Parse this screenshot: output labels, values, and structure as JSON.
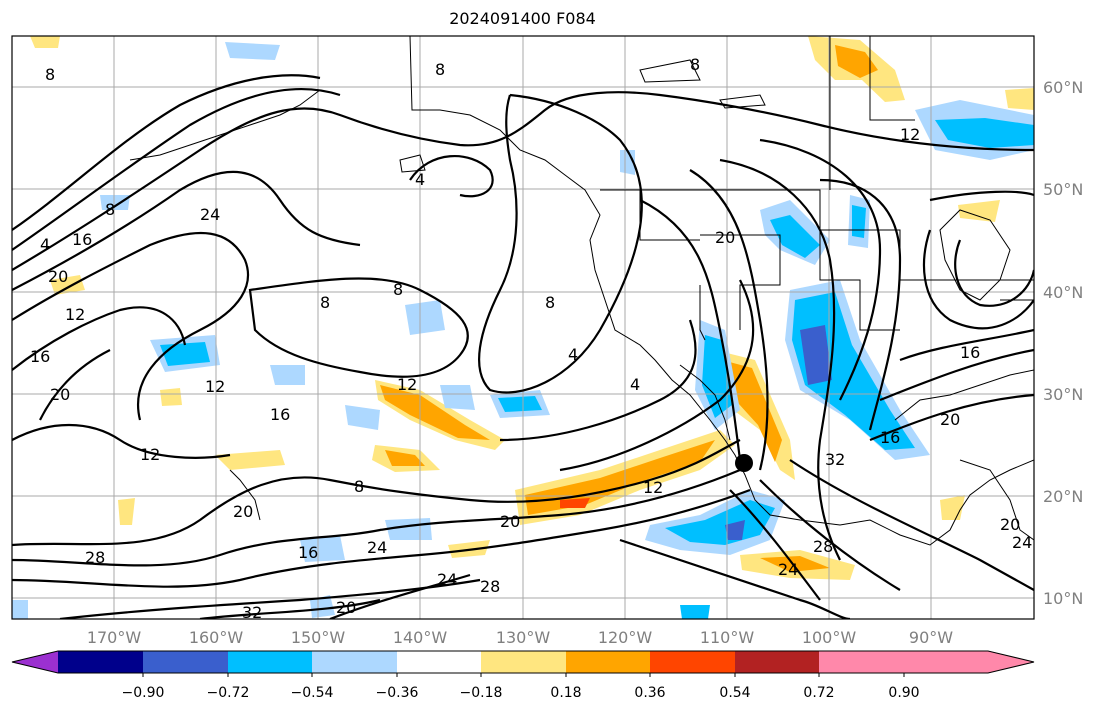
{
  "title": "2024091400 F084",
  "lat_labels": [
    "60°N",
    "50°N",
    "40°N",
    "30°N",
    "20°N",
    "10°N"
  ],
  "lon_labels": [
    "170°W",
    "160°W",
    "150°W",
    "140°W",
    "130°W",
    "120°W",
    "110°W",
    "100°W",
    "90°W"
  ],
  "colorbar": {
    "tick_labels": [
      "−0.90",
      "−0.72",
      "−0.54",
      "−0.36",
      "−0.18",
      "0.18",
      "0.36",
      "0.54",
      "0.72",
      "0.90"
    ],
    "colors": [
      "#9b30d0",
      "#00008b",
      "#3a5fcd",
      "#00bfff",
      "#add8ff",
      "#ffffff",
      "#ffe680",
      "#ffa500",
      "#ff4500",
      "#b22222",
      "#ff88aa"
    ]
  },
  "contour_labels": [
    "8",
    "8",
    "8",
    "12",
    "4",
    "4",
    "16",
    "20",
    "12",
    "16",
    "20",
    "24",
    "8",
    "8",
    "8",
    "4",
    "4",
    "20",
    "12",
    "16",
    "20",
    "12",
    "8",
    "20",
    "12",
    "16",
    "20",
    "32",
    "28",
    "24",
    "28",
    "24",
    "28",
    "24",
    "20",
    "16",
    "32",
    "12",
    "8",
    "16",
    "20",
    "24"
  ],
  "marker": "storm-center-dot"
}
